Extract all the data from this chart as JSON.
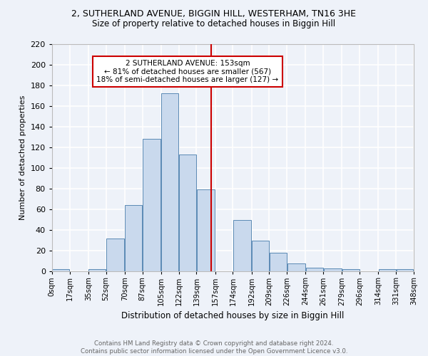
{
  "title": "2, SUTHERLAND AVENUE, BIGGIN HILL, WESTERHAM, TN16 3HE",
  "subtitle": "Size of property relative to detached houses in Biggin Hill",
  "xlabel": "Distribution of detached houses by size in Biggin Hill",
  "ylabel": "Number of detached properties",
  "bar_color": "#c9d9ed",
  "bar_edge_color": "#5a8ab5",
  "bin_edges": [
    0,
    17,
    35,
    52,
    70,
    87,
    105,
    122,
    139,
    157,
    174,
    192,
    209,
    226,
    244,
    261,
    279,
    296,
    314,
    331,
    348
  ],
  "bin_labels": [
    "0sqm",
    "17sqm",
    "35sqm",
    "52sqm",
    "70sqm",
    "87sqm",
    "105sqm",
    "122sqm",
    "139sqm",
    "157sqm",
    "174sqm",
    "192sqm",
    "209sqm",
    "226sqm",
    "244sqm",
    "261sqm",
    "279sqm",
    "296sqm",
    "314sqm",
    "331sqm",
    "348sqm"
  ],
  "counts": [
    2,
    0,
    2,
    32,
    64,
    128,
    172,
    113,
    79,
    0,
    50,
    30,
    18,
    8,
    4,
    3,
    2,
    0,
    2,
    2
  ],
  "property_line_x": 153,
  "annotation_line1": "2 SUTHERLAND AVENUE: 153sqm",
  "annotation_line2": "← 81% of detached houses are smaller (567)",
  "annotation_line3": "18% of semi-detached houses are larger (127) →",
  "annotation_box_color": "#ffffff",
  "annotation_box_edge": "#cc0000",
  "line_color": "#cc0000",
  "footer_text": "Contains HM Land Registry data © Crown copyright and database right 2024.\nContains public sector information licensed under the Open Government Licence v3.0.",
  "ylim": [
    0,
    220
  ],
  "background_color": "#eef2f9",
  "grid_color": "#ffffff"
}
